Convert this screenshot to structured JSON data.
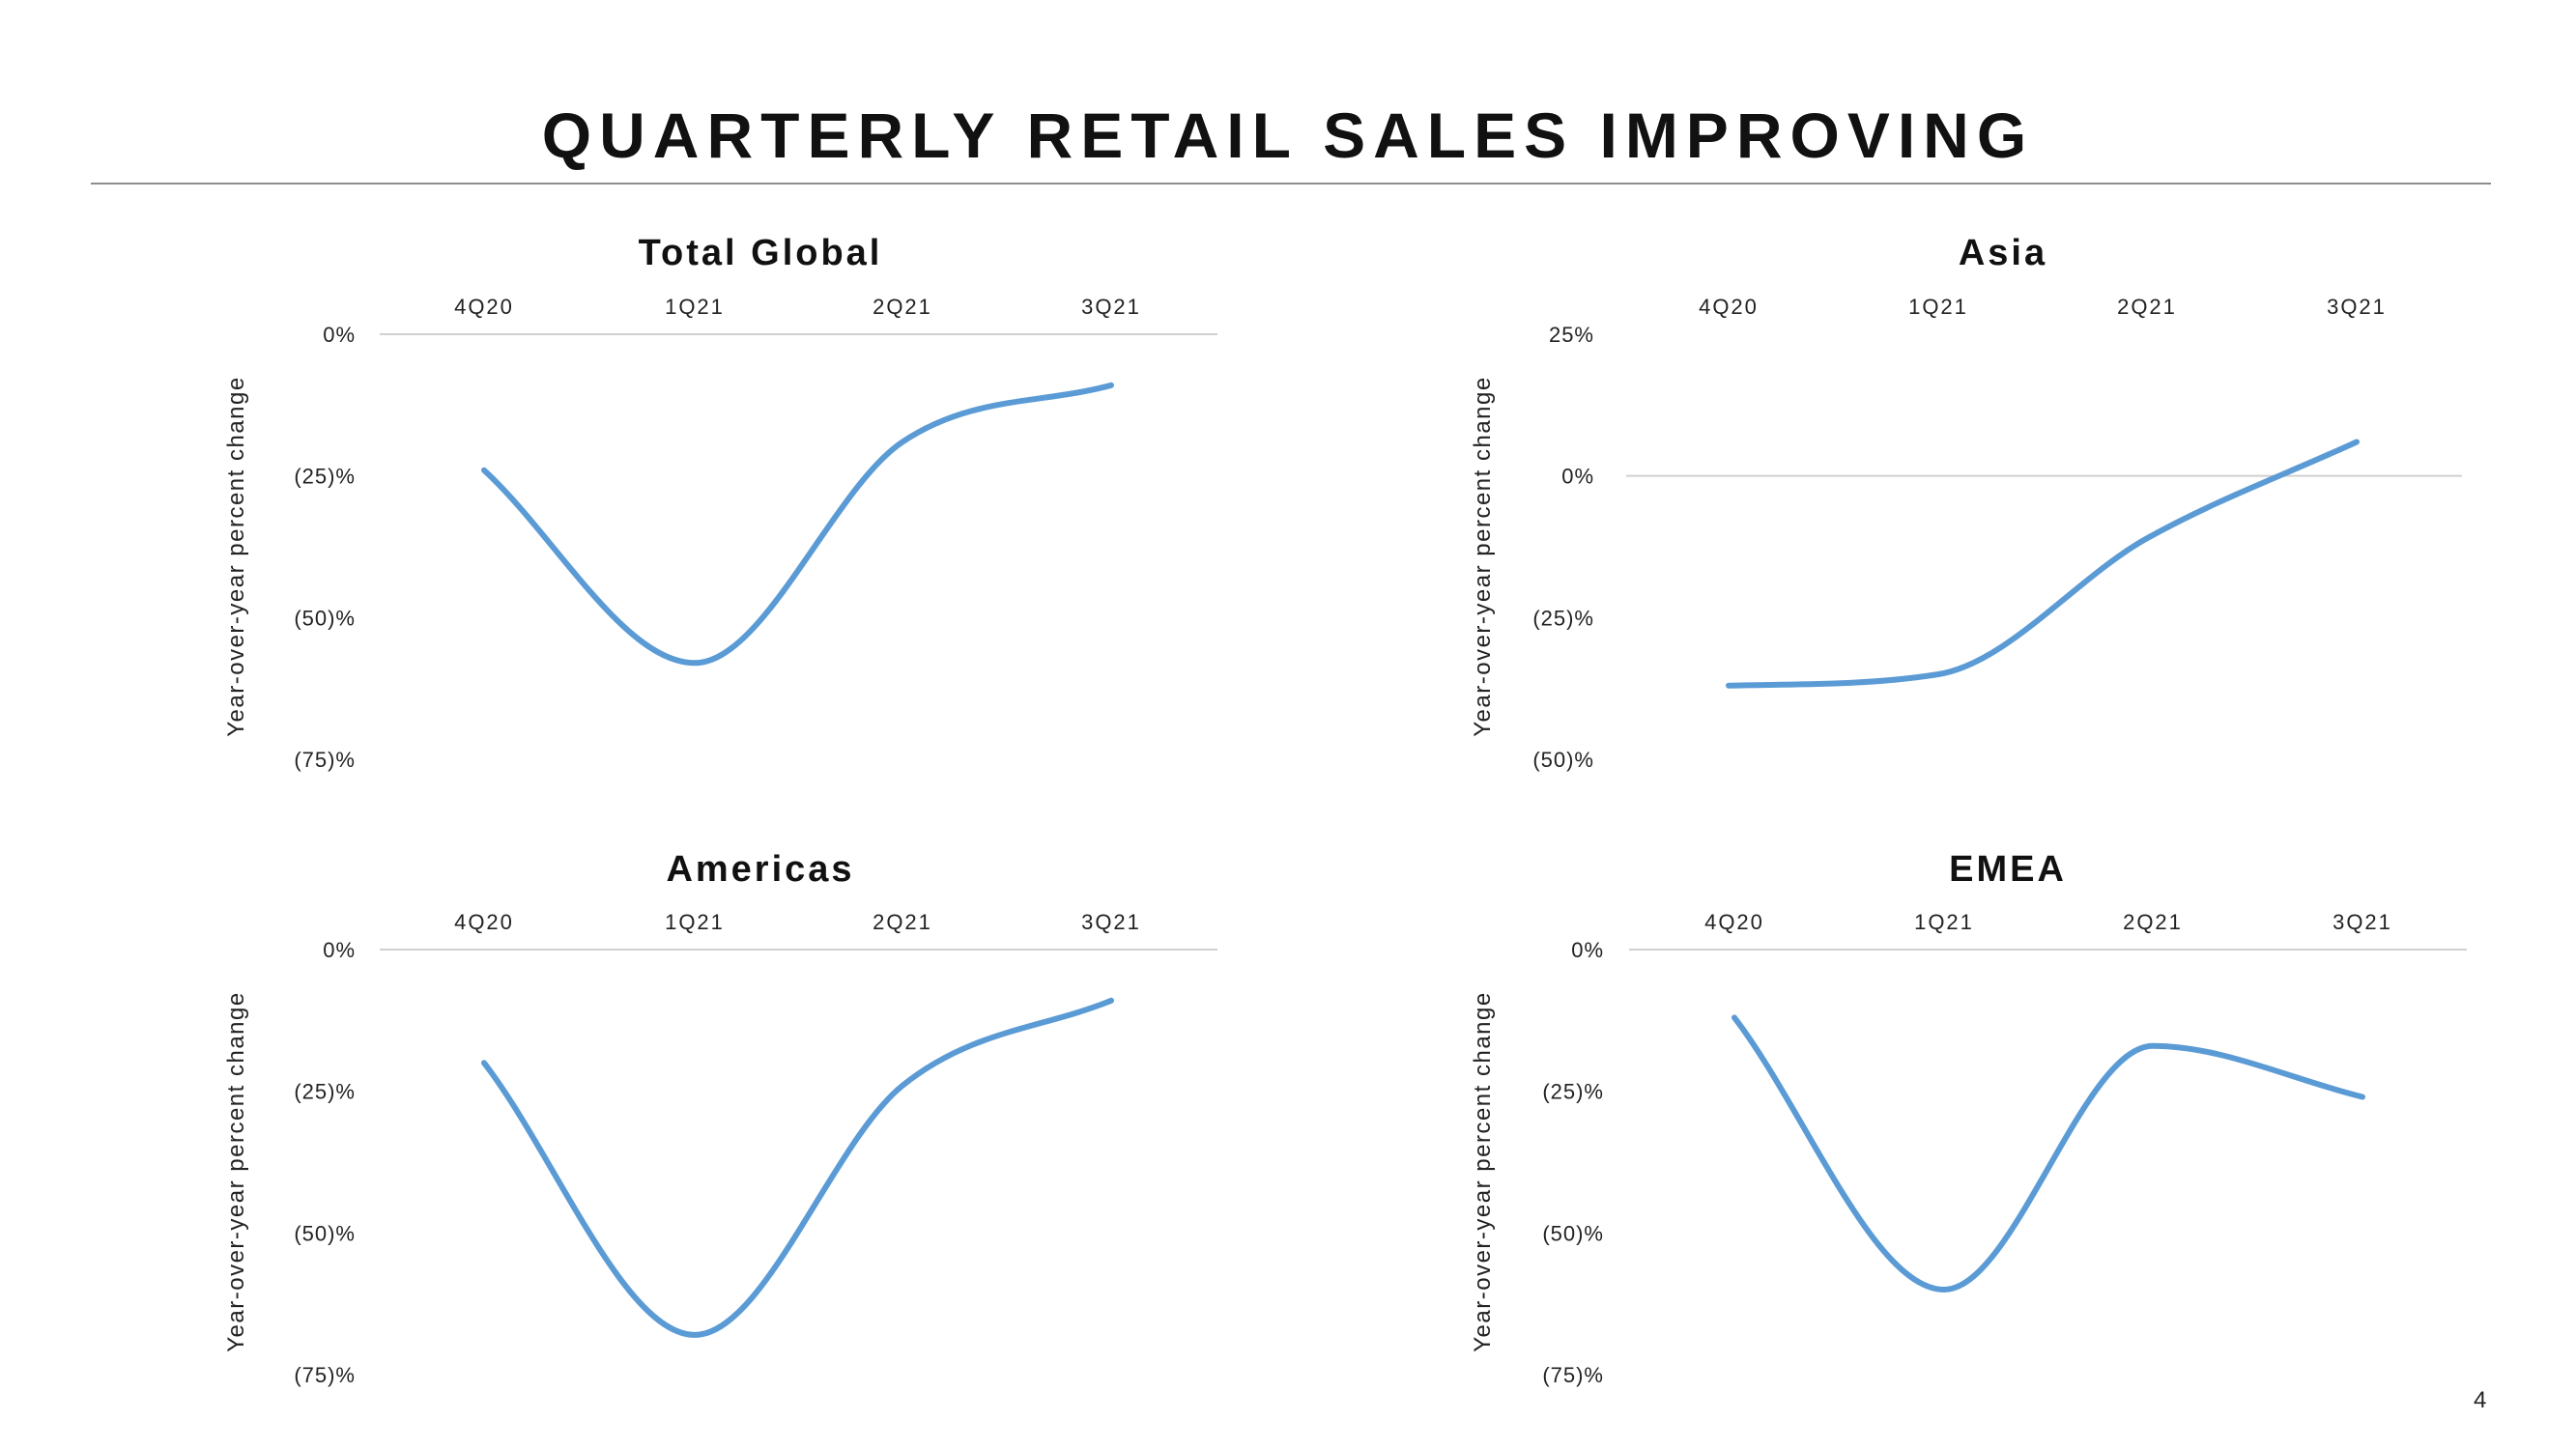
{
  "page": {
    "title": "QUARTERLY RETAIL SALES IMPROVING",
    "page_number": "4"
  },
  "style": {
    "line_color": "#5b9bd5",
    "grid_color": "#d0d0d0"
  },
  "chart_data": [
    {
      "type": "line",
      "title": "Total Global",
      "categories": [
        "4Q20",
        "1Q21",
        "2Q21",
        "3Q21"
      ],
      "series": [
        {
          "values": [
            -24,
            -58,
            -19,
            -9
          ]
        }
      ],
      "ylabel": "Year-over-year percent change",
      "ylim": [
        -75,
        0
      ],
      "yticks": [
        0,
        -25,
        -50,
        -75
      ],
      "ytick_labels": [
        "0%",
        "(25)%",
        "(50)%",
        "(75)%"
      ],
      "x_axis_position": "top",
      "grid": false,
      "smooth": true
    },
    {
      "type": "line",
      "title": "Asia",
      "categories": [
        "4Q20",
        "1Q21",
        "2Q21",
        "3Q21"
      ],
      "series": [
        {
          "values": [
            -37,
            -35,
            -11,
            6
          ]
        }
      ],
      "ylabel": "Year-over-year percent change",
      "ylim": [
        -50,
        25
      ],
      "yticks": [
        25,
        0,
        -25,
        -50
      ],
      "ytick_labels": [
        "25%",
        "0%",
        "(25)%",
        "(50)%"
      ],
      "x_axis_position": "top",
      "grid": false,
      "smooth": true
    },
    {
      "type": "line",
      "title": "Americas",
      "categories": [
        "4Q20",
        "1Q21",
        "2Q21",
        "3Q21"
      ],
      "series": [
        {
          "values": [
            -20,
            -68,
            -24,
            -9
          ]
        }
      ],
      "ylabel": "Year-over-year percent change",
      "ylim": [
        -75,
        0
      ],
      "yticks": [
        0,
        -25,
        -50,
        -75
      ],
      "ytick_labels": [
        "0%",
        "(25)%",
        "(50)%",
        "(75)%"
      ],
      "x_axis_position": "top",
      "grid": false,
      "smooth": true
    },
    {
      "type": "line",
      "title": "EMEA",
      "categories": [
        "4Q20",
        "1Q21",
        "2Q21",
        "3Q21"
      ],
      "series": [
        {
          "values": [
            -12,
            -60,
            -17,
            -26
          ]
        }
      ],
      "ylabel": "Year-over-year percent change",
      "ylim": [
        -75,
        0
      ],
      "yticks": [
        0,
        -25,
        -50,
        -75
      ],
      "ytick_labels": [
        "0%",
        "(25)%",
        "(50)%",
        "(75)%"
      ],
      "x_axis_position": "top",
      "grid": false,
      "smooth": true
    }
  ]
}
